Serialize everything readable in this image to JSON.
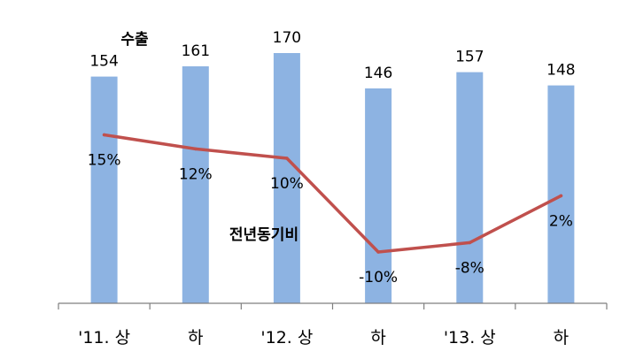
{
  "chart_data": {
    "type": "bar",
    "categories": [
      "'11. 상",
      "하",
      "'12. 상",
      "하",
      "'13. 상",
      "하"
    ],
    "series": [
      {
        "name": "수출",
        "type": "bar",
        "values": [
          154,
          161,
          170,
          146,
          157,
          148
        ],
        "labels": [
          "154",
          "161",
          "170",
          "146",
          "157",
          "148"
        ],
        "color": "#8db3e2"
      },
      {
        "name": "전년동기비",
        "type": "line",
        "values": [
          15,
          12,
          10,
          -10,
          -8,
          2
        ],
        "labels": [
          "15%",
          "12%",
          "10%",
          "-10%",
          "-8%",
          "2%"
        ],
        "color": "#c0504d"
      }
    ],
    "ylim_bar": [
      0,
      180
    ],
    "ylim_line": [
      -16,
      46
    ],
    "grid": false
  }
}
